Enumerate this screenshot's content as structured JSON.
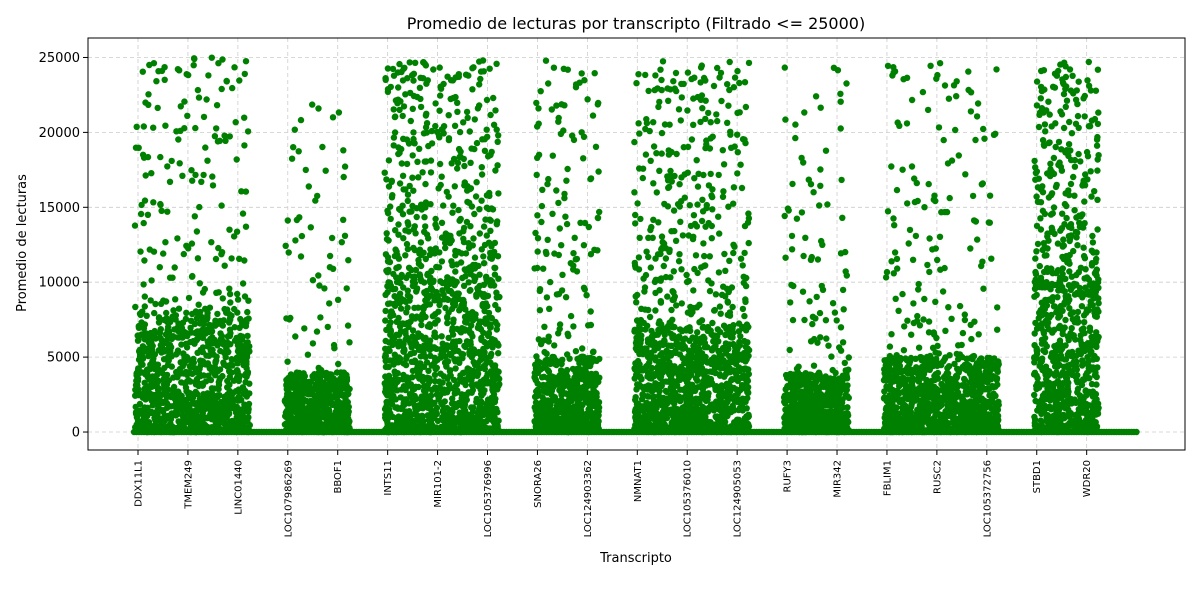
{
  "chart_data": {
    "type": "scatter",
    "title": "Promedio de lecturas por transcripto (Filtrado <= 25000)",
    "xlabel": "Transcripto",
    "ylabel": "Promedio de lecturas",
    "ylim": [
      -1200,
      26300
    ],
    "yticks": [
      0,
      5000,
      10000,
      15000,
      20000,
      25000
    ],
    "grid": true,
    "marker_color": "#008000",
    "categories": [
      "DDX11L1",
      "TMEM249",
      "LINC01440",
      "LOC107986269",
      "BBOF1",
      "INTS11",
      "MIR101-2",
      "LOC105376996",
      "SNORA26",
      "LOC124903362",
      "NMNAT1",
      "LOC105376010",
      "LOC124905053",
      "RUFY3",
      "MIR342",
      "FBLIM1",
      "RUSC2",
      "LOC105372756",
      "STBD1",
      "WDR20"
    ],
    "clusters": [
      {
        "start": "DDX11L1",
        "end": "LINC01440",
        "base_max": 8000,
        "top": 25000,
        "outliers": 170
      },
      {
        "start": "LOC107986269",
        "end": "BBOF1",
        "base_max": 4000,
        "top": 22300,
        "outliers": 60
      },
      {
        "start": "INTS11",
        "end": "LOC105376996",
        "base_max": 10000,
        "top": 24900,
        "outliers": 420
      },
      {
        "start": "SNORA26",
        "end": "LOC124903362",
        "base_max": 5000,
        "top": 24800,
        "outliers": 130
      },
      {
        "start": "NMNAT1",
        "end": "LOC124905053",
        "base_max": 7000,
        "top": 24900,
        "outliers": 340
      },
      {
        "start": "RUFY3",
        "end": "MIR342",
        "base_max": 4000,
        "top": 24600,
        "outliers": 85
      },
      {
        "start": "FBLIM1",
        "end": "LOC105372756",
        "base_max": 5000,
        "top": 24900,
        "outliers": 150
      },
      {
        "start": "STBD1",
        "end": "WDR20",
        "base_max": 9000,
        "top": 24900,
        "outliers": 320
      }
    ],
    "zero_baseline": {
      "start": "DDX11L1",
      "end": "WDR20",
      "value": 0
    }
  }
}
